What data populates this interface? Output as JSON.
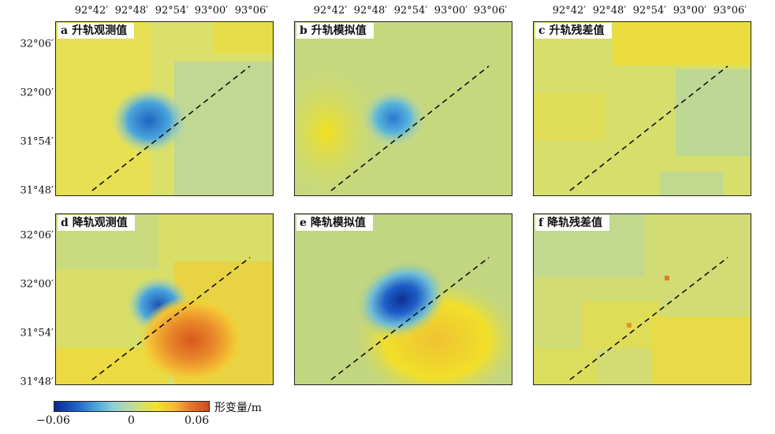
{
  "lon_ticks": [
    "92°42′",
    "92°48′",
    "92°54′",
    "93°00′",
    "93°06′"
  ],
  "lat_ticks": [
    "32°06′",
    "32°00′",
    "31°54′",
    "31°48′"
  ],
  "panels": [
    {
      "letter": "a",
      "title": "升轨观测值"
    },
    {
      "letter": "b",
      "title": "升轨模拟值"
    },
    {
      "letter": "c",
      "title": "升轨残差值"
    },
    {
      "letter": "d",
      "title": "降轨观测值"
    },
    {
      "letter": "e",
      "title": "降轨模拟值"
    },
    {
      "letter": "f",
      "title": "降轨残差值"
    }
  ],
  "colorbar": {
    "min_label": "−0.06",
    "mid_label": "0",
    "max_label": "0.06",
    "unit_label": "形变量/m",
    "colors": [
      "#0a2a8c",
      "#4aa6dc",
      "#b8d8a8",
      "#f2e22a",
      "#d24a1e"
    ]
  }
}
